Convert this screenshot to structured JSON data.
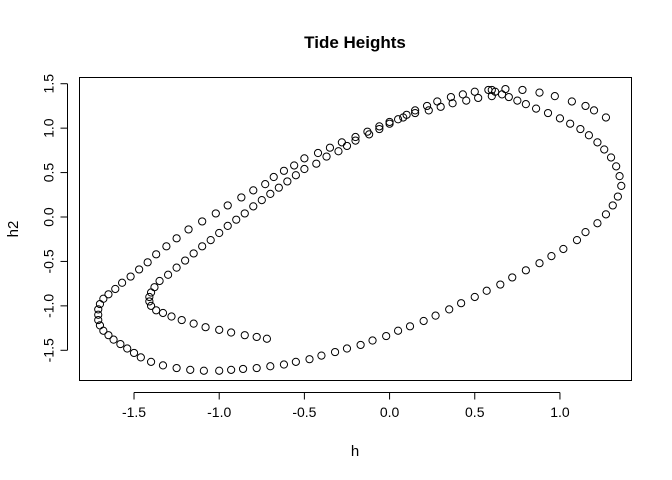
{
  "chart_data": {
    "type": "scatter",
    "title": "Tide Heights",
    "xlabel": "h",
    "ylabel": "h2",
    "xlim": [
      -1.82,
      1.42
    ],
    "ylim": [
      -1.84,
      1.57
    ],
    "xticks": [
      -1.5,
      -1.0,
      -0.5,
      0.0,
      0.5,
      1.0
    ],
    "xtick_labels": [
      "-1.5",
      "-1.0",
      "-0.5",
      "0.0",
      "0.5",
      "1.0"
    ],
    "yticks": [
      -1.5,
      -1.0,
      -0.5,
      0.0,
      0.5,
      1.0,
      1.5
    ],
    "ytick_labels": [
      "-1.5",
      "-1.0",
      "-0.5",
      "0.0",
      "0.5",
      "1.0",
      "1.5"
    ],
    "grid": false,
    "marker": "open-circle",
    "point_color": "#000000",
    "series": [
      {
        "x": [
          1.27,
          1.2,
          1.15,
          1.07,
          0.97,
          0.88,
          0.78,
          0.68,
          0.6,
          0.5,
          0.43,
          0.36,
          0.28,
          0.22,
          0.15,
          0.1,
          0.05,
          0.0,
          -0.06,
          -0.12,
          -0.2,
          -0.25,
          -0.3,
          -0.37,
          -0.43,
          -0.5,
          -0.55,
          -0.6,
          -0.65,
          -0.7,
          -0.75,
          -0.8,
          -0.85,
          -0.9,
          -0.95,
          -1.0,
          -1.05,
          -1.1,
          -1.15,
          -1.2,
          -1.25,
          -1.3,
          -1.35,
          -1.38,
          -1.4,
          -1.41,
          -1.41,
          -1.4,
          -1.37,
          -1.33,
          -1.28,
          -1.22,
          -1.15,
          -1.08,
          -1.0,
          -0.93,
          -0.85,
          -0.78,
          -0.72
        ],
        "y": [
          1.12,
          1.2,
          1.25,
          1.3,
          1.36,
          1.4,
          1.43,
          1.44,
          1.43,
          1.41,
          1.38,
          1.35,
          1.3,
          1.25,
          1.2,
          1.15,
          1.1,
          1.05,
          0.99,
          0.93,
          0.86,
          0.8,
          0.74,
          0.68,
          0.6,
          0.54,
          0.47,
          0.4,
          0.33,
          0.26,
          0.19,
          0.12,
          0.04,
          -0.03,
          -0.1,
          -0.18,
          -0.26,
          -0.33,
          -0.41,
          -0.49,
          -0.57,
          -0.65,
          -0.72,
          -0.79,
          -0.85,
          -0.9,
          -0.95,
          -1.0,
          -1.05,
          -1.08,
          -1.12,
          -1.16,
          -1.2,
          -1.24,
          -1.27,
          -1.3,
          -1.33,
          -1.35,
          -1.37
        ]
      },
      {
        "x": [
          0.6,
          0.52,
          0.45,
          0.37,
          0.3,
          0.23,
          0.15,
          0.08,
          0.0,
          -0.06,
          -0.13,
          -0.2,
          -0.28,
          -0.35,
          -0.42,
          -0.5,
          -0.56,
          -0.62,
          -0.68,
          -0.73,
          -0.8,
          -0.87,
          -0.95,
          -1.02,
          -1.1,
          -1.18,
          -1.25,
          -1.31,
          -1.37,
          -1.42,
          -1.47,
          -1.52,
          -1.57,
          -1.61,
          -1.65,
          -1.68,
          -1.7,
          -1.71,
          -1.71,
          -1.71,
          -1.7,
          -1.68,
          -1.65,
          -1.62,
          -1.58,
          -1.54,
          -1.5,
          -1.46,
          -1.4,
          -1.33,
          -1.25,
          -1.17,
          -1.09,
          -1.0,
          -0.93,
          -0.86,
          -0.78,
          -0.7,
          -0.62,
          -0.55,
          -0.47,
          -0.4,
          -0.32,
          -0.25,
          -0.17,
          -0.1,
          -0.02,
          0.05,
          0.12,
          0.2,
          0.27,
          0.35,
          0.42,
          0.5,
          0.57,
          0.65,
          0.72,
          0.8,
          0.88,
          0.95,
          1.02,
          1.1,
          1.15,
          1.22,
          1.27,
          1.31,
          1.34,
          1.36,
          1.35,
          1.33,
          1.3,
          1.26,
          1.22,
          1.17,
          1.12,
          1.06,
          1.0,
          0.93,
          0.86,
          0.8,
          0.75,
          0.7,
          0.66,
          0.62,
          0.58
        ],
        "y": [
          1.36,
          1.34,
          1.31,
          1.28,
          1.24,
          1.2,
          1.17,
          1.12,
          1.07,
          1.02,
          0.96,
          0.9,
          0.84,
          0.78,
          0.72,
          0.66,
          0.58,
          0.52,
          0.45,
          0.37,
          0.3,
          0.22,
          0.13,
          0.04,
          -0.05,
          -0.14,
          -0.24,
          -0.33,
          -0.42,
          -0.51,
          -0.59,
          -0.67,
          -0.74,
          -0.81,
          -0.87,
          -0.92,
          -0.98,
          -1.04,
          -1.1,
          -1.16,
          -1.22,
          -1.28,
          -1.33,
          -1.38,
          -1.43,
          -1.48,
          -1.53,
          -1.58,
          -1.63,
          -1.67,
          -1.7,
          -1.72,
          -1.73,
          -1.73,
          -1.72,
          -1.71,
          -1.7,
          -1.68,
          -1.66,
          -1.63,
          -1.6,
          -1.56,
          -1.52,
          -1.48,
          -1.44,
          -1.39,
          -1.34,
          -1.28,
          -1.23,
          -1.17,
          -1.11,
          -1.04,
          -0.97,
          -0.9,
          -0.83,
          -0.76,
          -0.68,
          -0.6,
          -0.52,
          -0.44,
          -0.36,
          -0.26,
          -0.17,
          -0.07,
          0.03,
          0.13,
          0.23,
          0.35,
          0.46,
          0.57,
          0.67,
          0.76,
          0.84,
          0.92,
          0.99,
          1.05,
          1.11,
          1.17,
          1.22,
          1.27,
          1.31,
          1.35,
          1.38,
          1.41,
          1.43
        ]
      }
    ]
  }
}
